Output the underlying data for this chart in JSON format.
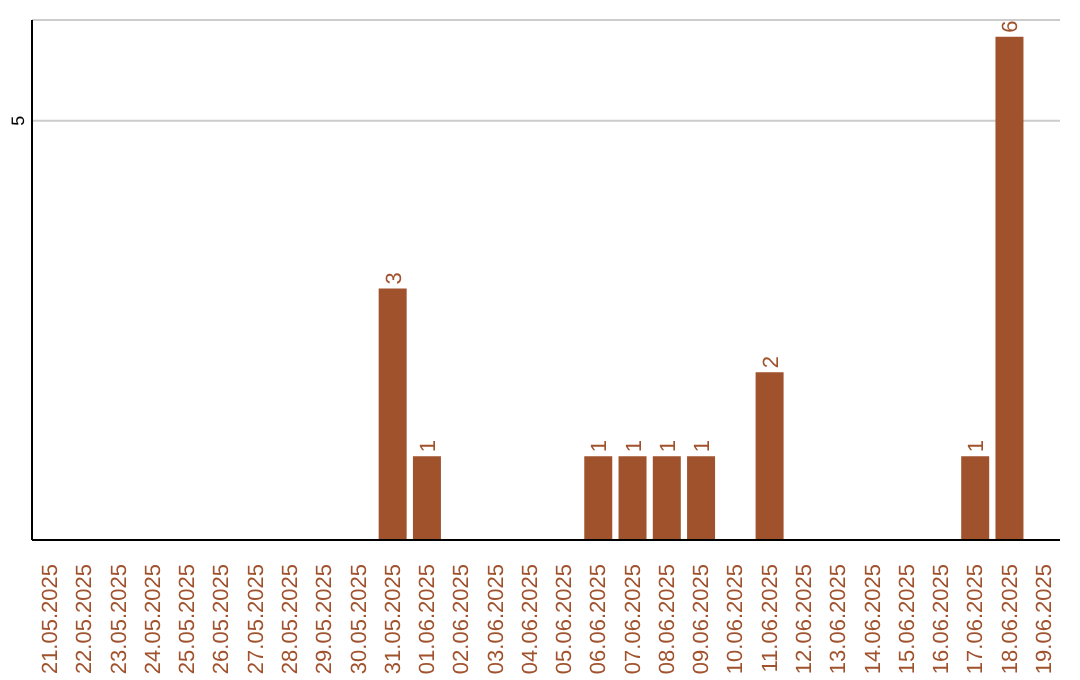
{
  "chart_data": {
    "type": "bar",
    "categories": [
      "21.05.2025",
      "22.05.2025",
      "23.05.2025",
      "24.05.2025",
      "25.05.2025",
      "26.05.2025",
      "27.05.2025",
      "28.05.2025",
      "29.05.2025",
      "30.05.2025",
      "31.05.2025",
      "01.06.2025",
      "02.06.2025",
      "03.06.2025",
      "04.06.2025",
      "05.06.2025",
      "06.06.2025",
      "07.06.2025",
      "08.06.2025",
      "09.06.2025",
      "10.06.2025",
      "11.06.2025",
      "12.06.2025",
      "13.06.2025",
      "14.06.2025",
      "15.06.2025",
      "16.06.2025",
      "17.06.2025",
      "18.06.2025",
      "19.06.2025"
    ],
    "values": [
      0,
      0,
      0,
      0,
      0,
      0,
      0,
      0,
      0,
      0,
      3,
      1,
      0,
      0,
      0,
      0,
      1,
      1,
      1,
      1,
      0,
      2,
      0,
      0,
      0,
      0,
      0,
      1,
      6,
      0
    ],
    "value_labels": [
      null,
      null,
      null,
      null,
      null,
      null,
      null,
      null,
      null,
      null,
      "3",
      "1",
      null,
      null,
      null,
      null,
      "1",
      "1",
      "1",
      "1",
      null,
      "2",
      null,
      null,
      null,
      null,
      null,
      "1",
      "6",
      null
    ],
    "color": "#a0522d",
    "ylim": [
      0,
      6.2
    ],
    "yticks": [
      5
    ],
    "grid": "y"
  }
}
